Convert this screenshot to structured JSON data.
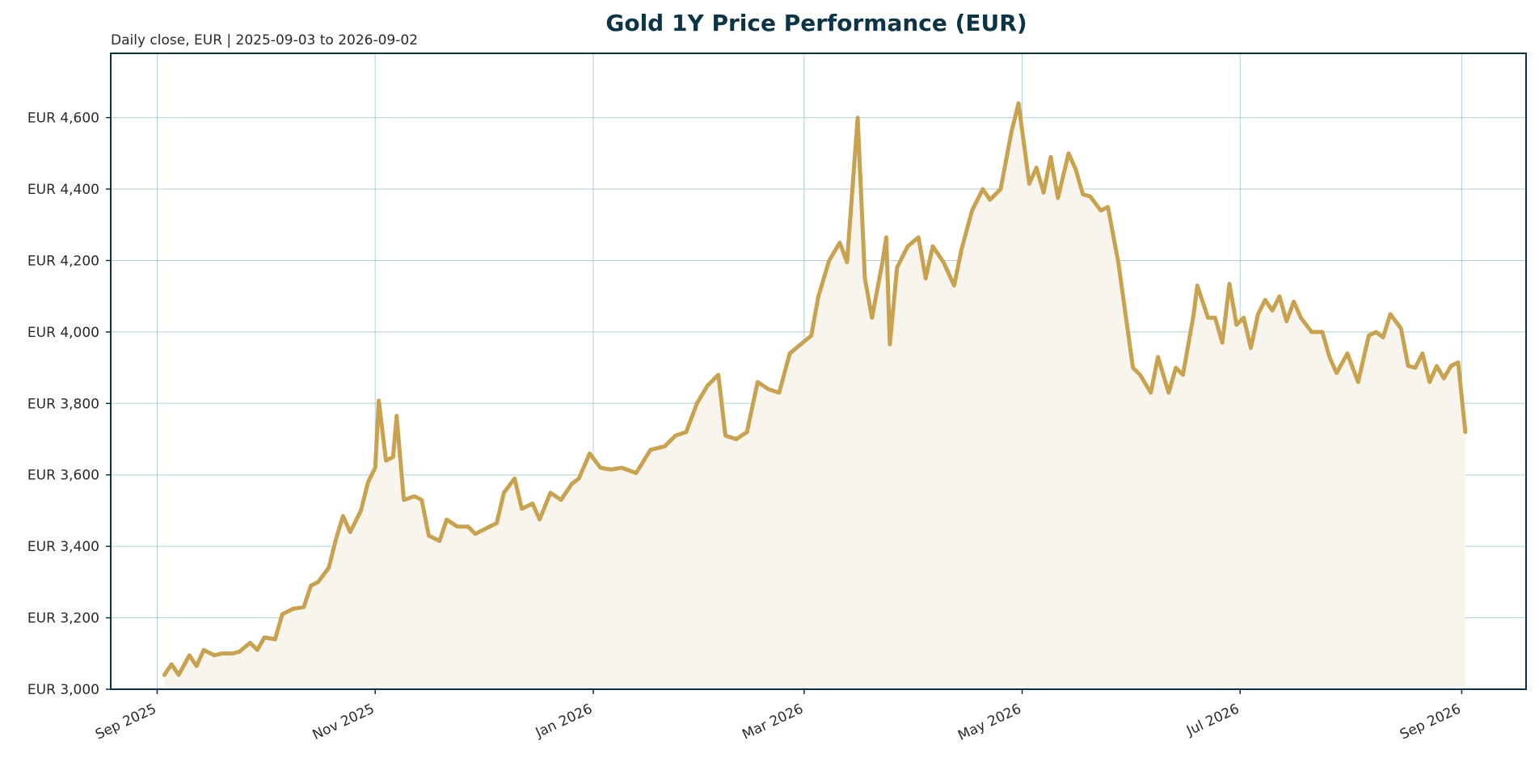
{
  "chart_data": {
    "type": "line",
    "title": "Gold 1Y Price Performance (EUR)",
    "subtitle": "Daily close, EUR | 2025-09-03 to 2026-09-02",
    "xlabel": "",
    "ylabel": "",
    "ylim": [
      3000,
      4780
    ],
    "xlim": [
      "2025-08-19",
      "2026-09-19"
    ],
    "grid": true,
    "legend": "none",
    "colors": {
      "line": "#c8a24e",
      "fill": "#f8f5ef",
      "frame": "#0b3040",
      "title": "#0b3446",
      "grid": "#8fbcc8"
    },
    "y_ticks": [
      {
        "value": 3000,
        "label": "EUR 3,000"
      },
      {
        "value": 3200,
        "label": "EUR 3,200"
      },
      {
        "value": 3400,
        "label": "EUR 3,400"
      },
      {
        "value": 3600,
        "label": "EUR 3,600"
      },
      {
        "value": 3800,
        "label": "EUR 3,800"
      },
      {
        "value": 4000,
        "label": "EUR 4,000"
      },
      {
        "value": 4200,
        "label": "EUR 4,200"
      },
      {
        "value": 4400,
        "label": "EUR 4,400"
      },
      {
        "value": 4600,
        "label": "EUR 4,600"
      }
    ],
    "x_ticks": [
      {
        "date": "2025-09-01",
        "label": "Sep 2025"
      },
      {
        "date": "2025-11-01",
        "label": "Nov 2025"
      },
      {
        "date": "2026-01-01",
        "label": "Jan 2026"
      },
      {
        "date": "2026-03-01",
        "label": "Mar 2026"
      },
      {
        "date": "2026-05-01",
        "label": "May 2026"
      },
      {
        "date": "2026-07-01",
        "label": "Jul 2026"
      },
      {
        "date": "2026-09-01",
        "label": "Sep 2026"
      }
    ],
    "series": [
      {
        "points": [
          [
            "2025-09-03",
            3040
          ],
          [
            "2025-09-05",
            3070
          ],
          [
            "2025-09-07",
            3040
          ],
          [
            "2025-09-10",
            3095
          ],
          [
            "2025-09-12",
            3065
          ],
          [
            "2025-09-14",
            3110
          ],
          [
            "2025-09-17",
            3095
          ],
          [
            "2025-09-19",
            3100
          ],
          [
            "2025-09-22",
            3100
          ],
          [
            "2025-09-24",
            3105
          ],
          [
            "2025-09-27",
            3130
          ],
          [
            "2025-09-29",
            3110
          ],
          [
            "2025-10-01",
            3145
          ],
          [
            "2025-10-04",
            3140
          ],
          [
            "2025-10-06",
            3210
          ],
          [
            "2025-10-09",
            3225
          ],
          [
            "2025-10-12",
            3230
          ],
          [
            "2025-10-14",
            3290
          ],
          [
            "2025-10-16",
            3300
          ],
          [
            "2025-10-19",
            3340
          ],
          [
            "2025-10-21",
            3420
          ],
          [
            "2025-10-23",
            3485
          ],
          [
            "2025-10-25",
            3440
          ],
          [
            "2025-10-28",
            3500
          ],
          [
            "2025-10-30",
            3580
          ],
          [
            "2025-11-01",
            3620
          ],
          [
            "2025-11-02",
            3808
          ],
          [
            "2025-11-04",
            3640
          ],
          [
            "2025-11-06",
            3650
          ],
          [
            "2025-11-07",
            3765
          ],
          [
            "2025-11-09",
            3530
          ],
          [
            "2025-11-12",
            3540
          ],
          [
            "2025-11-14",
            3530
          ],
          [
            "2025-11-16",
            3430
          ],
          [
            "2025-11-19",
            3415
          ],
          [
            "2025-11-21",
            3475
          ],
          [
            "2025-11-24",
            3455
          ],
          [
            "2025-11-27",
            3455
          ],
          [
            "2025-11-29",
            3435
          ],
          [
            "2025-12-02",
            3450
          ],
          [
            "2025-12-05",
            3465
          ],
          [
            "2025-12-07",
            3550
          ],
          [
            "2025-12-10",
            3590
          ],
          [
            "2025-12-12",
            3505
          ],
          [
            "2025-12-15",
            3520
          ],
          [
            "2025-12-17",
            3475
          ],
          [
            "2025-12-20",
            3550
          ],
          [
            "2025-12-23",
            3530
          ],
          [
            "2025-12-26",
            3575
          ],
          [
            "2025-12-28",
            3590
          ],
          [
            "2025-12-31",
            3660
          ],
          [
            "2026-01-03",
            3620
          ],
          [
            "2026-01-06",
            3615
          ],
          [
            "2026-01-09",
            3620
          ],
          [
            "2026-01-13",
            3605
          ],
          [
            "2026-01-17",
            3670
          ],
          [
            "2026-01-21",
            3680
          ],
          [
            "2026-01-24",
            3710
          ],
          [
            "2026-01-27",
            3720
          ],
          [
            "2026-01-30",
            3800
          ],
          [
            "2026-02-02",
            3850
          ],
          [
            "2026-02-05",
            3880
          ],
          [
            "2026-02-07",
            3710
          ],
          [
            "2026-02-10",
            3700
          ],
          [
            "2026-02-13",
            3720
          ],
          [
            "2026-02-16",
            3860
          ],
          [
            "2026-02-19",
            3840
          ],
          [
            "2026-02-22",
            3830
          ],
          [
            "2026-02-25",
            3940
          ],
          [
            "2026-02-28",
            3965
          ],
          [
            "2026-03-03",
            3990
          ],
          [
            "2026-03-05",
            4100
          ],
          [
            "2026-03-08",
            4200
          ],
          [
            "2026-03-11",
            4250
          ],
          [
            "2026-03-13",
            4195
          ],
          [
            "2026-03-16",
            4600
          ],
          [
            "2026-03-18",
            4150
          ],
          [
            "2026-03-20",
            4040
          ],
          [
            "2026-03-23",
            4200
          ],
          [
            "2026-03-24",
            4265
          ],
          [
            "2026-03-25",
            3965
          ],
          [
            "2026-03-27",
            4180
          ],
          [
            "2026-03-30",
            4240
          ],
          [
            "2026-04-02",
            4265
          ],
          [
            "2026-04-04",
            4150
          ],
          [
            "2026-04-06",
            4240
          ],
          [
            "2026-04-09",
            4195
          ],
          [
            "2026-04-12",
            4130
          ],
          [
            "2026-04-14",
            4230
          ],
          [
            "2026-04-17",
            4340
          ],
          [
            "2026-04-20",
            4400
          ],
          [
            "2026-04-22",
            4370
          ],
          [
            "2026-04-25",
            4400
          ],
          [
            "2026-04-28",
            4560
          ],
          [
            "2026-04-30",
            4640
          ],
          [
            "2026-05-03",
            4415
          ],
          [
            "2026-05-05",
            4460
          ],
          [
            "2026-05-07",
            4390
          ],
          [
            "2026-05-09",
            4490
          ],
          [
            "2026-05-11",
            4375
          ],
          [
            "2026-05-14",
            4500
          ],
          [
            "2026-05-16",
            4455
          ],
          [
            "2026-05-18",
            4385
          ],
          [
            "2026-05-20",
            4380
          ],
          [
            "2026-05-23",
            4340
          ],
          [
            "2026-05-25",
            4350
          ],
          [
            "2026-05-28",
            4190
          ],
          [
            "2026-06-01",
            3900
          ],
          [
            "2026-06-03",
            3880
          ],
          [
            "2026-06-06",
            3830
          ],
          [
            "2026-06-08",
            3930
          ],
          [
            "2026-06-11",
            3830
          ],
          [
            "2026-06-13",
            3900
          ],
          [
            "2026-06-15",
            3880
          ],
          [
            "2026-06-18",
            4050
          ],
          [
            "2026-06-19",
            4130
          ],
          [
            "2026-06-22",
            4040
          ],
          [
            "2026-06-24",
            4040
          ],
          [
            "2026-06-26",
            3970
          ],
          [
            "2026-06-28",
            4135
          ],
          [
            "2026-06-30",
            4020
          ],
          [
            "2026-07-02",
            4040
          ],
          [
            "2026-07-04",
            3955
          ],
          [
            "2026-07-06",
            4050
          ],
          [
            "2026-07-08",
            4090
          ],
          [
            "2026-07-10",
            4060
          ],
          [
            "2026-07-12",
            4100
          ],
          [
            "2026-07-14",
            4030
          ],
          [
            "2026-07-16",
            4085
          ],
          [
            "2026-07-18",
            4040
          ],
          [
            "2026-07-21",
            4000
          ],
          [
            "2026-07-24",
            4000
          ],
          [
            "2026-07-26",
            3930
          ],
          [
            "2026-07-28",
            3885
          ],
          [
            "2026-07-31",
            3940
          ],
          [
            "2026-08-03",
            3860
          ],
          [
            "2026-08-06",
            3990
          ],
          [
            "2026-08-08",
            4000
          ],
          [
            "2026-08-10",
            3985
          ],
          [
            "2026-08-12",
            4050
          ],
          [
            "2026-08-15",
            4010
          ],
          [
            "2026-08-17",
            3905
          ],
          [
            "2026-08-19",
            3900
          ],
          [
            "2026-08-21",
            3940
          ],
          [
            "2026-08-23",
            3860
          ],
          [
            "2026-08-25",
            3905
          ],
          [
            "2026-08-27",
            3870
          ],
          [
            "2026-08-29",
            3905
          ],
          [
            "2026-08-31",
            3915
          ],
          [
            "2026-09-02",
            3720
          ]
        ]
      }
    ]
  }
}
